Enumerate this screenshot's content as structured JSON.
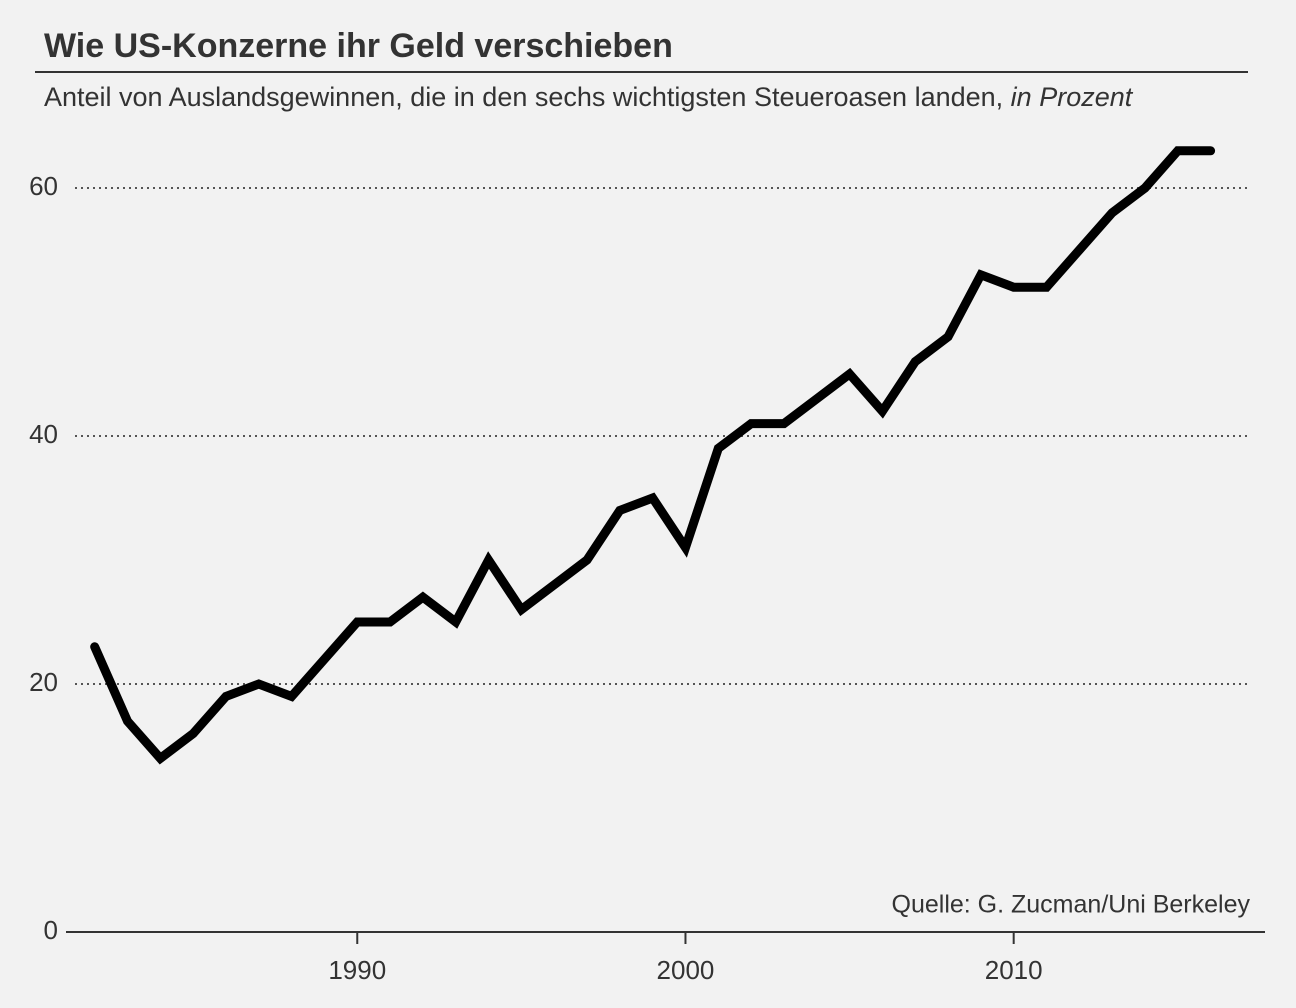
{
  "chart_data": {
    "type": "line",
    "title": "Wie US-Konzerne ihr Geld verschieben",
    "subtitle": "Anteil von Auslandsgewinnen, die in den sechs wichtigsten Steueroasen landen,",
    "unit": "in Prozent",
    "source": "Quelle: G. Zucman/Uni Berkeley",
    "x": [
      1982,
      1983,
      1984,
      1985,
      1986,
      1987,
      1988,
      1989,
      1990,
      1991,
      1992,
      1993,
      1994,
      1995,
      1996,
      1997,
      1998,
      1999,
      2000,
      2001,
      2002,
      2003,
      2004,
      2005,
      2006,
      2007,
      2008,
      2009,
      2010,
      2011,
      2012,
      2013,
      2014,
      2015,
      2016
    ],
    "series": [
      {
        "color": "#000000",
        "values": [
          23,
          17,
          14,
          16,
          19,
          20,
          19,
          22,
          25,
          25,
          27,
          25,
          30,
          26,
          28,
          30,
          34,
          35,
          31,
          39,
          41,
          41,
          43,
          45,
          42,
          46,
          48,
          53,
          52,
          52,
          55,
          58,
          60,
          63,
          63
        ]
      }
    ],
    "xlim": [
      1981.4,
      2017.2
    ],
    "xticks": [
      1990,
      2000,
      2010
    ],
    "ylim": [
      0,
      64
    ],
    "yticks": [
      0,
      20,
      40,
      60
    ],
    "grid": true
  }
}
